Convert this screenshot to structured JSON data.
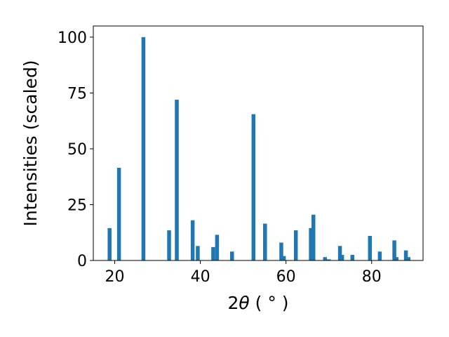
{
  "chart_data": {
    "type": "bar",
    "title": "",
    "xlabel_main": "2",
    "xlabel_symbol": "θ",
    "xlabel_unit": " ( ° )",
    "ylabel": "Intensities (scaled)",
    "xlim": [
      15,
      92
    ],
    "ylim": [
      0,
      105
    ],
    "xticks": [
      20,
      40,
      60,
      80
    ],
    "yticks": [
      0,
      25,
      50,
      75,
      100
    ],
    "grid": false,
    "legend": "none",
    "bar_color": "#1f77b4",
    "x": [
      18.8,
      21.0,
      26.7,
      32.7,
      34.5,
      38.2,
      39.4,
      43.0,
      43.9,
      47.4,
      52.4,
      55.1,
      58.9,
      59.5,
      62.3,
      65.8,
      66.4,
      69.1,
      70.0,
      72.6,
      73.1,
      75.5,
      79.6,
      81.9,
      85.3,
      85.8,
      88.0,
      88.6
    ],
    "values": [
      14.5,
      41.5,
      100,
      13.5,
      72,
      18,
      6.5,
      6,
      11.5,
      4,
      65.5,
      16.5,
      8,
      2,
      13.5,
      14.5,
      20.5,
      1.5,
      0.5,
      6.5,
      2.5,
      2.5,
      11,
      4,
      9,
      1.5,
      4.5,
      1.5
    ]
  }
}
